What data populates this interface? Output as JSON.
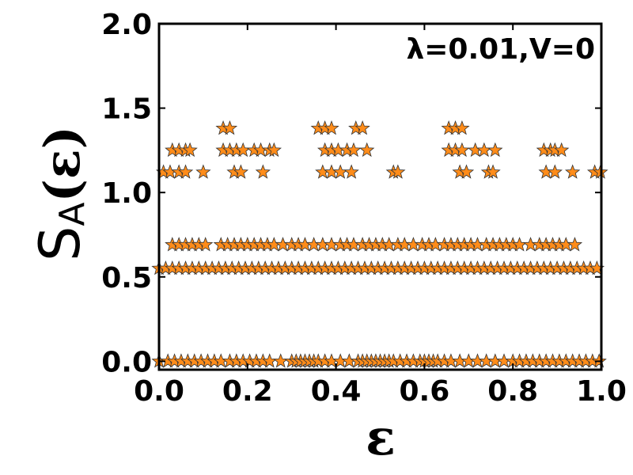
{
  "chart_data": {
    "type": "scatter",
    "title": "",
    "annotation": "λ=0.01,V=0",
    "xlabel": "ε",
    "ylabel_main": "S",
    "ylabel_sub": "A",
    "ylabel_arg": "(ε)",
    "xlim": [
      0.0,
      1.0
    ],
    "ylim": [
      -0.05,
      2.0
    ],
    "xticks": [
      0.0,
      0.2,
      0.4,
      0.6,
      0.8,
      1.0
    ],
    "xtick_labels": [
      "0.0",
      "0.2",
      "0.4",
      "0.6",
      "0.8",
      "1.0"
    ],
    "yticks": [
      0.0,
      0.5,
      1.0,
      1.5,
      2.0
    ],
    "ytick_labels": [
      "0.0",
      "0.5",
      "1.0",
      "1.5",
      "2.0"
    ],
    "grid": false,
    "legend": "none",
    "marker": "star",
    "marker_color": "#ff8c1a",
    "marker_edge_color": "#333333",
    "series": [
      {
        "y": 0.0,
        "x": [
          0.0,
          0.02,
          0.035,
          0.05,
          0.065,
          0.08,
          0.095,
          0.11,
          0.125,
          0.14,
          0.16,
          0.175,
          0.19,
          0.205,
          0.22,
          0.235,
          0.25,
          0.275,
          0.3,
          0.31,
          0.32,
          0.33,
          0.34,
          0.35,
          0.36,
          0.375,
          0.39,
          0.41,
          0.43,
          0.45,
          0.46,
          0.47,
          0.48,
          0.49,
          0.5,
          0.51,
          0.52,
          0.53,
          0.545,
          0.56,
          0.575,
          0.59,
          0.6,
          0.61,
          0.62,
          0.63,
          0.645,
          0.66,
          0.68,
          0.7,
          0.72,
          0.74,
          0.76,
          0.78,
          0.8,
          0.815,
          0.83,
          0.845,
          0.86,
          0.875,
          0.89,
          0.905,
          0.92,
          0.935,
          0.95,
          0.965,
          0.98,
          0.995
        ]
      },
      {
        "y": 0.55,
        "x": [
          0.0,
          0.015,
          0.03,
          0.045,
          0.06,
          0.075,
          0.09,
          0.105,
          0.12,
          0.135,
          0.15,
          0.165,
          0.18,
          0.195,
          0.21,
          0.225,
          0.24,
          0.255,
          0.27,
          0.285,
          0.3,
          0.315,
          0.33,
          0.345,
          0.36,
          0.375,
          0.39,
          0.405,
          0.42,
          0.435,
          0.45,
          0.465,
          0.48,
          0.495,
          0.51,
          0.525,
          0.54,
          0.555,
          0.57,
          0.585,
          0.6,
          0.615,
          0.63,
          0.645,
          0.66,
          0.675,
          0.69,
          0.705,
          0.72,
          0.735,
          0.75,
          0.765,
          0.78,
          0.795,
          0.81,
          0.825,
          0.84,
          0.855,
          0.87,
          0.885,
          0.9,
          0.915,
          0.93,
          0.945,
          0.96,
          0.975,
          0.99
        ]
      },
      {
        "y": 0.69,
        "x": [
          0.03,
          0.045,
          0.06,
          0.075,
          0.09,
          0.105,
          0.14,
          0.155,
          0.17,
          0.185,
          0.2,
          0.215,
          0.23,
          0.245,
          0.26,
          0.28,
          0.3,
          0.315,
          0.33,
          0.35,
          0.37,
          0.39,
          0.41,
          0.425,
          0.44,
          0.46,
          0.475,
          0.49,
          0.505,
          0.52,
          0.54,
          0.555,
          0.575,
          0.595,
          0.61,
          0.625,
          0.645,
          0.66,
          0.675,
          0.69,
          0.705,
          0.72,
          0.74,
          0.755,
          0.77,
          0.785,
          0.8,
          0.815,
          0.84,
          0.86,
          0.875,
          0.89,
          0.905,
          0.92,
          0.94
        ]
      },
      {
        "y": 1.12,
        "x": [
          0.01,
          0.025,
          0.045,
          0.06,
          0.1,
          0.17,
          0.185,
          0.235,
          0.37,
          0.39,
          0.41,
          0.435,
          0.53,
          0.54,
          0.68,
          0.695,
          0.745,
          0.755,
          0.875,
          0.895,
          0.935,
          0.985,
          0.998
        ]
      },
      {
        "y": 1.25,
        "x": [
          0.03,
          0.045,
          0.06,
          0.07,
          0.145,
          0.16,
          0.175,
          0.19,
          0.215,
          0.23,
          0.25,
          0.26,
          0.375,
          0.39,
          0.405,
          0.425,
          0.44,
          0.47,
          0.655,
          0.67,
          0.685,
          0.715,
          0.735,
          0.76,
          0.87,
          0.885,
          0.895,
          0.91
        ]
      },
      {
        "y": 1.38,
        "x": [
          0.145,
          0.16,
          0.36,
          0.375,
          0.39,
          0.445,
          0.46,
          0.655,
          0.67,
          0.685
        ]
      }
    ]
  }
}
